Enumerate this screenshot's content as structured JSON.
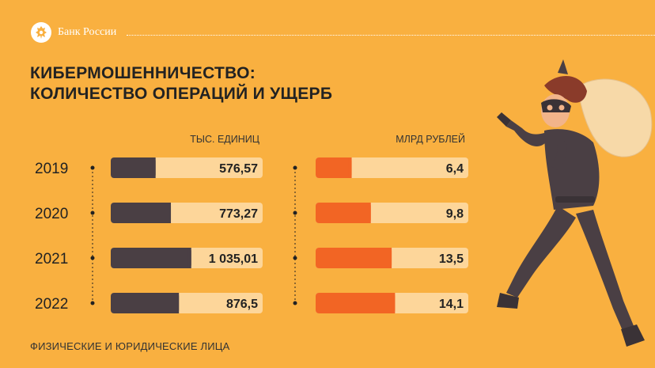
{
  "header": {
    "bank_name": "Банк России"
  },
  "title": {
    "line1": "КИБЕРМОШЕННИЧЕСТВО:",
    "line2": "КОЛИЧЕСТВО ОПЕРАЦИЙ И УЩЕРБ"
  },
  "footnote": "ФИЗИЧЕСКИЕ И ЮРИДИЧЕСКИЕ ЛИЦА",
  "colors": {
    "background": "#f9b040",
    "track": "#fdd69a",
    "operations_bar": "#4a3f44",
    "damage_bar": "#f26524",
    "text_dark": "#222222"
  },
  "chart_data": {
    "type": "bar",
    "orientation": "horizontal",
    "categories": [
      "2019",
      "2020",
      "2021",
      "2022"
    ],
    "series": [
      {
        "name": "ТЫС. ЕДИНИЦ",
        "values": [
          576.57,
          773.27,
          1035.01,
          876.5
        ],
        "labels": [
          "576,57",
          "773,27",
          "1 035,01",
          "876,5"
        ],
        "max": 1035.01
      },
      {
        "name": "МЛРД РУБЛЕЙ",
        "values": [
          6.4,
          9.8,
          13.5,
          14.1
        ],
        "labels": [
          "6,4",
          "9,8",
          "13,5",
          "14,1"
        ],
        "max": 14.1
      }
    ]
  }
}
